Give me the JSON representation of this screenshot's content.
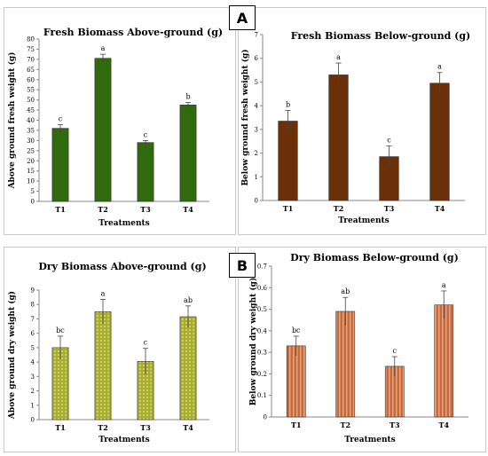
{
  "panel_labels": [
    "A",
    "B"
  ],
  "chart_data": [
    {
      "type": "bar",
      "title": "Fresh Biomass Above-ground  (g)",
      "xlabel": "Treatments",
      "ylabel": "Above ground fresh weight (g)",
      "categories": [
        "T1",
        "T2",
        "T3",
        "T4"
      ],
      "values": [
        36,
        70.5,
        29,
        47.5
      ],
      "errors": [
        1.8,
        2.0,
        1.0,
        1.2
      ],
      "letters": [
        "c",
        "a",
        "c",
        "b"
      ],
      "ylim": [
        0,
        80
      ],
      "yticks": [
        "0",
        "5",
        "10",
        "15",
        "20",
        "25",
        "30",
        "35",
        "40",
        "45",
        "50",
        "55",
        "60",
        "65",
        "70",
        "75",
        "80"
      ],
      "color": "#2f6a0c",
      "pattern": "solid"
    },
    {
      "type": "bar",
      "title": "Fresh Biomass Below-ground  (g)",
      "xlabel": "Treatments",
      "ylabel": "Below ground fresh weight (g)",
      "categories": [
        "T1",
        "T2",
        "T3",
        "T4"
      ],
      "values": [
        3.35,
        5.3,
        1.85,
        4.95
      ],
      "errors": [
        0.45,
        0.5,
        0.45,
        0.45
      ],
      "letters": [
        "b",
        "a",
        "c",
        "a"
      ],
      "ylim": [
        0,
        7
      ],
      "yticks": [
        "0",
        "1",
        "2",
        "3",
        "4",
        "5",
        "6",
        "7"
      ],
      "color": "#6b3008",
      "pattern": "solid"
    },
    {
      "type": "bar",
      "title": "Dry Biomass Above-ground (g)",
      "xlabel": "Treatments",
      "ylabel": "Above ground dry weight (g)",
      "categories": [
        "T1",
        "T2",
        "T3",
        "T4"
      ],
      "values": [
        5.0,
        7.5,
        4.05,
        7.15
      ],
      "errors": [
        0.8,
        0.85,
        0.9,
        0.75
      ],
      "letters": [
        "bc",
        "a",
        "c",
        "ab"
      ],
      "ylim": [
        0,
        9
      ],
      "yticks": [
        "0",
        "1",
        "2",
        "3",
        "4",
        "5",
        "6",
        "7",
        "8",
        "9"
      ],
      "color": "#a8ad2c",
      "pattern": "dots"
    },
    {
      "type": "bar",
      "title": "Dry Biomass Below-ground (g)",
      "xlabel": "Treatments",
      "ylabel": "Below ground dry weight (g)",
      "categories": [
        "T1",
        "T2",
        "T3",
        "T4"
      ],
      "values": [
        0.33,
        0.49,
        0.235,
        0.52
      ],
      "errors": [
        0.045,
        0.065,
        0.045,
        0.065
      ],
      "letters": [
        "bc",
        "ab",
        "c",
        "a"
      ],
      "ylim": [
        0,
        0.7
      ],
      "yticks": [
        "0",
        "0.1",
        "0.2",
        "0.3",
        "0.4",
        "0.5",
        "0.6",
        "0.7"
      ],
      "color": "#c8693c",
      "pattern": "stripes"
    }
  ]
}
